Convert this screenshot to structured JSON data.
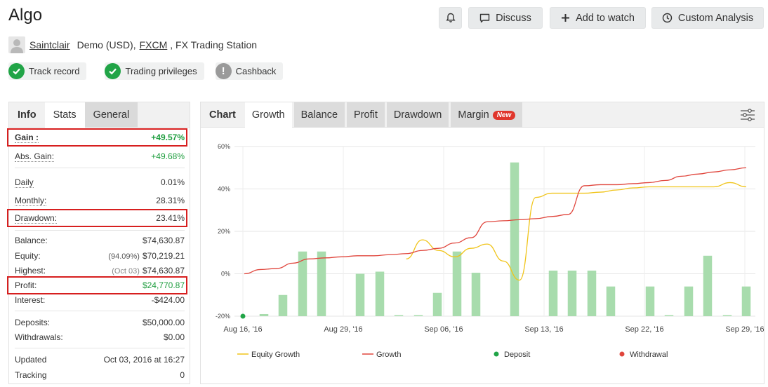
{
  "header": {
    "title": "Algo",
    "buttons": {
      "notify_label": "",
      "discuss_label": "Discuss",
      "watch_label": "Add to watch",
      "analysis_label": "Custom Analysis"
    }
  },
  "account": {
    "user": "Saintclair",
    "type": "Demo (USD),",
    "broker": "FXCM",
    "platform": ", FX Trading Station"
  },
  "badges": {
    "track_record": "Track record",
    "trading_privileges": "Trading privileges",
    "cashback": "Cashback"
  },
  "left_tabs": {
    "info": "Info",
    "stats": "Stats",
    "general": "General"
  },
  "stats": {
    "gain_label": "Gain :",
    "gain_value": "+49.57%",
    "abs_gain_label": "Abs. Gain:",
    "abs_gain_value": "+49.68%",
    "daily_label": "Daily",
    "daily_value": "0.01%",
    "monthly_label": "Monthly:",
    "monthly_value": "28.31%",
    "drawdown_label": "Drawdown:",
    "drawdown_value": "23.41%",
    "balance_label": "Balance:",
    "balance_value": "$74,630.87",
    "equity_label": "Equity:",
    "equity_note": "(94.09%)",
    "equity_value": "$70,219.21",
    "highest_label": "Highest:",
    "highest_note": "(Oct 03)",
    "highest_value": "$74,630.87",
    "profit_label": "Profit:",
    "profit_value": "$24,770.87",
    "interest_label": "Interest:",
    "interest_value": "-$424.00",
    "deposits_label": "Deposits:",
    "deposits_value": "$50,000.00",
    "withdrawals_label": "Withdrawals:",
    "withdrawals_value": "$0.00",
    "updated_label": "Updated",
    "updated_value": "Oct 03, 2016 at 16:27",
    "tracking_label": "Tracking",
    "tracking_value": "0"
  },
  "chart_tabs": {
    "chart": "Chart",
    "growth": "Growth",
    "balance": "Balance",
    "profit": "Profit",
    "drawdown": "Drawdown",
    "margin": "Margin",
    "new_badge": "New"
  },
  "colors": {
    "growth": "#e0453c",
    "equity_growth": "#f0c419",
    "bar": "#a8dcad",
    "deposit": "#21a447",
    "withdrawal": "#e0453c",
    "highlight": "#d71f1f"
  },
  "icons": {
    "notify": "bell-icon",
    "discuss": "comment-icon",
    "watch": "plus-icon",
    "analysis": "clock-icon",
    "settings": "sliders-icon",
    "check": "check-icon",
    "cashback": "exclamation-icon"
  },
  "chart_data": {
    "type": "bar",
    "title": "",
    "xlabel": "",
    "ylabel": "",
    "ylim": [
      -20,
      60
    ],
    "yticks": [
      "60%",
      "40%",
      "20%",
      "0%",
      "-20%"
    ],
    "ytick_values": [
      60,
      40,
      20,
      0,
      -20
    ],
    "xticks": [
      "Aug 16, '16",
      "Aug 29, '16",
      "Sep 06, '16",
      "Sep 13, '16",
      "Sep 22, '16",
      "Sep 29, '16"
    ],
    "grid": true,
    "legend_position": "bottom",
    "bars": [
      {
        "category": "1",
        "value": -19
      },
      {
        "category": "2",
        "value": -10
      },
      {
        "category": "3",
        "value": 10.5
      },
      {
        "category": "4",
        "value": 10.5
      },
      {
        "category": "5",
        "value": 0
      },
      {
        "category": "6",
        "value": 1
      },
      {
        "category": "7",
        "value": -20
      },
      {
        "category": "8",
        "value": -20
      },
      {
        "category": "9",
        "value": -9
      },
      {
        "category": "10",
        "value": 10.5
      },
      {
        "category": "11",
        "value": 0.5
      },
      {
        "category": "12",
        "value": 52.5
      },
      {
        "category": "13",
        "value": 1.5
      },
      {
        "category": "14",
        "value": 1.5
      },
      {
        "category": "15",
        "value": 1.5
      },
      {
        "category": "16",
        "value": -6
      },
      {
        "category": "17",
        "value": -6
      },
      {
        "category": "18",
        "value": -19.5
      },
      {
        "category": "19",
        "value": -6
      },
      {
        "category": "20",
        "value": 8.5
      },
      {
        "category": "21",
        "value": -20
      },
      {
        "category": "22",
        "value": -6
      }
    ],
    "series": [
      {
        "name": "Equity Growth",
        "values": [
          9,
          9.5,
          10,
          10,
          9.5,
          9,
          9,
          10,
          12,
          11,
          7,
          16,
          11,
          8,
          12,
          14,
          6,
          -3,
          36,
          38,
          38,
          38,
          38.5,
          39.5,
          40.5,
          41,
          41,
          41,
          41,
          41,
          43,
          41
        ]
      },
      {
        "name": "Growth",
        "values": [
          0,
          2,
          2.5,
          5,
          7,
          7.5,
          8,
          8.5,
          8.5,
          9,
          9.5,
          11,
          12,
          14.5,
          17,
          24.5,
          25,
          25.5,
          26,
          27,
          28,
          41.5,
          42,
          42,
          42.5,
          43,
          44,
          46,
          47,
          48,
          49,
          50
        ]
      }
    ],
    "legend": [
      "Equity Growth",
      "Growth",
      "Deposit",
      "Withdrawal"
    ]
  }
}
